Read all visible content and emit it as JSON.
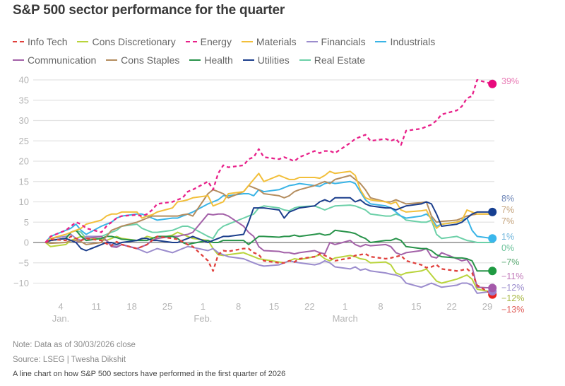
{
  "chart_data": {
    "type": "line",
    "title": "S&P 500 sector performance for the quarter",
    "xlabel": "",
    "ylabel": "",
    "ylim": [
      -10,
      40
    ],
    "xlim_days": [
      0,
      89
    ],
    "yticks": [
      40,
      35,
      30,
      25,
      20,
      15,
      10,
      5,
      0,
      -5,
      -10
    ],
    "ytick_labels": [
      "40",
      "35",
      "30",
      "25",
      "20",
      "15",
      "10",
      "5",
      "0",
      "−5",
      "−10"
    ],
    "xticks": [
      {
        "day": 3,
        "label": "4",
        "month": "Jan."
      },
      {
        "day": 10,
        "label": "11",
        "month": ""
      },
      {
        "day": 17,
        "label": "18",
        "month": ""
      },
      {
        "day": 24,
        "label": "25",
        "month": ""
      },
      {
        "day": 31,
        "label": "1",
        "month": "Feb."
      },
      {
        "day": 38,
        "label": "8",
        "month": ""
      },
      {
        "day": 45,
        "label": "15",
        "month": ""
      },
      {
        "day": 52,
        "label": "22",
        "month": ""
      },
      {
        "day": 59,
        "label": "1",
        "month": "March"
      },
      {
        "day": 66,
        "label": "8",
        "month": ""
      },
      {
        "day": 73,
        "label": "15",
        "month": ""
      },
      {
        "day": 80,
        "label": "22",
        "month": ""
      },
      {
        "day": 87,
        "label": "29",
        "month": ""
      }
    ],
    "grid": true,
    "legend_position": "top-left",
    "x_days": [
      0,
      1,
      4,
      5,
      6,
      7,
      8,
      11,
      12,
      13,
      14,
      15,
      18,
      19,
      20,
      21,
      22,
      25,
      26,
      27,
      28,
      29,
      32,
      33,
      34,
      35,
      36,
      39,
      40,
      41,
      42,
      43,
      46,
      47,
      48,
      49,
      50,
      53,
      54,
      55,
      56,
      57,
      60,
      61,
      62,
      63,
      64,
      67,
      68,
      69,
      70,
      71,
      74,
      75,
      76,
      77,
      78,
      81,
      82,
      83,
      84,
      85,
      88
    ],
    "series": [
      {
        "name": "Info Tech",
        "color": "#e0403c",
        "dashed": true,
        "end_label": "−13%",
        "end_dot_color": "#e8231f",
        "values": [
          0,
          0.8,
          0.5,
          1.5,
          1.0,
          0.5,
          1.0,
          0.5,
          -0.3,
          -0.8,
          0.2,
          -0.5,
          -1.5,
          -1.0,
          -0.5,
          0.5,
          1.5,
          1.0,
          0.8,
          0.2,
          -0.5,
          -1.0,
          -4.5,
          -7.0,
          -3.0,
          -2.0,
          -2.2,
          -1.5,
          -1.5,
          -2.5,
          -3.0,
          -4.5,
          -5.0,
          -5.0,
          -4.5,
          -4.8,
          -4.0,
          -3.5,
          -2.8,
          -3.2,
          -3.8,
          -4.5,
          -3.8,
          -3.2,
          -3.0,
          -2.8,
          -3.5,
          -4.0,
          -3.8,
          -3.5,
          -3.2,
          -4.5,
          -5.5,
          -6.2,
          -6.0,
          -5.5,
          -6.5,
          -7.0,
          -6.8,
          -6.5,
          -7.5,
          -10.5,
          -12.8
        ]
      },
      {
        "name": "Cons Discretionary",
        "color": "#b9d43c",
        "dashed": false,
        "end_label": "−12%",
        "end_dot_color": null,
        "values": [
          0,
          -1.0,
          -0.5,
          0.5,
          1.0,
          1.5,
          1.2,
          0.8,
          0.5,
          1.0,
          1.5,
          1.0,
          0.5,
          0.8,
          1.5,
          1.2,
          1.0,
          1.8,
          2.5,
          2.0,
          1.5,
          1.0,
          0.5,
          -1.5,
          -3.0,
          -3.2,
          -3.0,
          -2.5,
          -3.0,
          -3.5,
          -4.0,
          -4.2,
          -4.8,
          -5.0,
          -4.5,
          -4.0,
          -4.2,
          -3.5,
          -3.0,
          -4.0,
          -4.5,
          -3.8,
          -3.2,
          -3.5,
          -4.0,
          -4.2,
          -5.0,
          -4.8,
          -5.5,
          -7.5,
          -8.0,
          -7.5,
          -7.0,
          -6.5,
          -8.0,
          -9.5,
          -10.0,
          -9.0,
          -8.5,
          -8.0,
          -9.0,
          -11.5,
          -12.2
        ]
      },
      {
        "name": "Energy",
        "color": "#e8218a",
        "dashed": true,
        "end_label": "39%",
        "end_dot_color": "#e8097c",
        "values": [
          0,
          1.5,
          3.0,
          4.0,
          5.0,
          4.5,
          3.5,
          2.5,
          4.0,
          5.0,
          6.0,
          6.5,
          6.8,
          6.5,
          7.0,
          8.0,
          9.5,
          10.0,
          10.5,
          11.0,
          12.5,
          13.0,
          15.0,
          13.0,
          17.0,
          19.0,
          18.5,
          19.0,
          20.5,
          21.0,
          23.0,
          21.0,
          20.5,
          21.0,
          20.5,
          20.0,
          21.0,
          22.5,
          22.0,
          22.5,
          22.5,
          22.0,
          24.5,
          25.5,
          26.0,
          26.5,
          25.0,
          25.5,
          25.0,
          25.5,
          24.0,
          27.5,
          28.0,
          28.5,
          29.0,
          30.0,
          31.5,
          32.5,
          33.5,
          35.5,
          36.0,
          40.0,
          39.0
        ]
      },
      {
        "name": "Materials",
        "color": "#f2bf3a",
        "dashed": false,
        "end_label": "7%",
        "end_dot_color": null,
        "values": [
          0,
          1.0,
          2.0,
          2.5,
          3.0,
          3.5,
          4.5,
          5.5,
          6.5,
          7.0,
          7.0,
          7.5,
          7.5,
          6.0,
          6.5,
          6.8,
          7.5,
          8.5,
          10.0,
          10.2,
          10.5,
          11.0,
          11.5,
          9.0,
          9.5,
          10.0,
          12.0,
          12.5,
          14.0,
          15.5,
          17.0,
          15.0,
          16.5,
          16.0,
          15.5,
          15.5,
          16.0,
          16.0,
          15.8,
          16.5,
          17.5,
          17.0,
          17.5,
          16.5,
          13.0,
          11.0,
          10.5,
          10.0,
          9.5,
          10.0,
          8.0,
          7.5,
          7.8,
          8.0,
          5.5,
          3.5,
          4.5,
          5.0,
          5.5,
          8.0,
          7.5,
          7.0,
          7.0
        ]
      },
      {
        "name": "Financials",
        "color": "#9b8ccd",
        "dashed": false,
        "end_label": "−12%",
        "end_dot_color": "#9a7ecd",
        "values": [
          0,
          1.0,
          1.5,
          2.0,
          1.0,
          0.5,
          1.5,
          1.5,
          0.5,
          -0.5,
          -1.0,
          -0.5,
          -1.5,
          -2.0,
          -2.5,
          -2.0,
          -1.5,
          -2.5,
          -2.0,
          -1.5,
          -1.0,
          -1.2,
          -2.0,
          -1.5,
          -2.5,
          -3.0,
          -3.5,
          -4.0,
          -4.5,
          -5.0,
          -5.5,
          -5.8,
          -5.5,
          -5.0,
          -4.5,
          -4.8,
          -5.0,
          -5.5,
          -5.2,
          -4.5,
          -5.0,
          -6.0,
          -6.5,
          -6.0,
          -6.8,
          -6.5,
          -7.0,
          -7.5,
          -7.8,
          -8.0,
          -8.5,
          -10.0,
          -11.0,
          -10.5,
          -10.0,
          -10.5,
          -11.0,
          -10.5,
          -10.0,
          -10.0,
          -10.5,
          -12.5,
          -12.0
        ]
      },
      {
        "name": "Industrials",
        "color": "#3ab4e6",
        "dashed": false,
        "end_label": "1%",
        "end_dot_color": "#3ab7ec",
        "values": [
          0,
          1.5,
          3.0,
          3.5,
          4.5,
          3.0,
          2.0,
          4.0,
          4.5,
          5.0,
          6.0,
          6.5,
          7.0,
          7.0,
          6.5,
          6.0,
          5.5,
          6.0,
          6.0,
          6.5,
          7.0,
          7.5,
          9.5,
          10.0,
          10.5,
          11.5,
          11.5,
          12.0,
          12.0,
          11.5,
          13.0,
          12.5,
          13.0,
          13.5,
          14.0,
          14.2,
          14.5,
          14.0,
          13.8,
          14.5,
          14.8,
          14.5,
          15.0,
          14.5,
          12.5,
          10.5,
          9.5,
          9.0,
          8.5,
          7.5,
          6.5,
          6.0,
          6.5,
          7.0,
          6.0,
          4.0,
          4.5,
          5.0,
          5.5,
          6.0,
          3.0,
          1.5,
          1.0
        ]
      },
      {
        "name": "Communication",
        "color": "#a361a8",
        "dashed": false,
        "end_label": "−11%",
        "end_dot_color": "#a459aa",
        "values": [
          0,
          0.5,
          1.0,
          0.5,
          0,
          0.5,
          1.0,
          1.5,
          0.5,
          -1.0,
          -1.2,
          -0.5,
          -1.5,
          -1.0,
          -0.5,
          0.5,
          1.0,
          1.5,
          1.5,
          1.8,
          2.0,
          2.5,
          7.0,
          6.8,
          7.0,
          7.0,
          6.5,
          4.0,
          2.5,
          1.5,
          -1.0,
          -2.0,
          -2.2,
          -2.5,
          -2.5,
          -2.8,
          -2.5,
          -2.0,
          -2.5,
          -2.8,
          0,
          -0.5,
          0.5,
          -0.5,
          -1.0,
          -0.5,
          -0.8,
          -0.5,
          -1.0,
          -2.5,
          -3.0,
          -2.5,
          -2.0,
          -1.5,
          -3.5,
          -3.8,
          -2.5,
          -4.0,
          -4.5,
          -4.2,
          -6.0,
          -11.0,
          -11.2
        ]
      },
      {
        "name": "Cons Staples",
        "color": "#b48d5f",
        "dashed": false,
        "end_label": "7%",
        "end_dot_color": null,
        "values": [
          0,
          -0.2,
          0,
          0.5,
          0.5,
          0.2,
          -0.5,
          0,
          1.5,
          3.0,
          3.5,
          4.0,
          5.0,
          5.5,
          6.0,
          6.5,
          6.5,
          6.5,
          6.5,
          6.8,
          7.0,
          6.5,
          12.0,
          13.0,
          12.5,
          12.0,
          11.0,
          12.5,
          14.0,
          13.5,
          13.0,
          12.0,
          11.5,
          11.0,
          11.5,
          12.5,
          13.0,
          14.0,
          14.5,
          15.0,
          14.5,
          15.5,
          16.5,
          15.5,
          14.5,
          13.0,
          11.0,
          10.0,
          10.0,
          10.5,
          10.0,
          9.5,
          9.8,
          10.0,
          6.5,
          5.0,
          5.2,
          5.5,
          6.0,
          6.5,
          6.8,
          7.0,
          7.0
        ]
      },
      {
        "name": "Health",
        "color": "#28934a",
        "dashed": false,
        "end_label": "−7%",
        "end_dot_color": "#1f9a42",
        "values": [
          0,
          0.5,
          1.0,
          2.5,
          3.0,
          1.5,
          0.5,
          1.0,
          1.5,
          1.5,
          1.2,
          0.8,
          0.5,
          0.5,
          0.5,
          1.0,
          1.5,
          1.5,
          1.0,
          0,
          -0.5,
          -0.2,
          0.5,
          0,
          0,
          0.5,
          0.5,
          0.5,
          -0.5,
          0.5,
          1.5,
          1.5,
          1.3,
          1.5,
          1.5,
          1.8,
          1.5,
          2.0,
          2.2,
          1.8,
          2.0,
          3.0,
          2.5,
          2.2,
          1.5,
          1.0,
          0,
          0.5,
          0.5,
          1.0,
          0.5,
          -1.0,
          -1.5,
          -1.5,
          -2.0,
          -3.0,
          -3.5,
          -3.8,
          -3.8,
          -4.0,
          -4.5,
          -7.0,
          -7.0
        ]
      },
      {
        "name": "Utilities",
        "color": "#1b3e8c",
        "dashed": false,
        "end_label": "8%",
        "end_dot_color": "#163f91",
        "values": [
          0,
          0.5,
          1.0,
          0.5,
          0,
          -1.5,
          -2.0,
          -0.5,
          0,
          0,
          -0.5,
          0,
          0.5,
          1.0,
          1.0,
          0.5,
          0.5,
          0,
          0,
          0.5,
          1.0,
          1.5,
          0,
          0.5,
          1.0,
          1.5,
          1.5,
          2.0,
          5.0,
          8.5,
          8.5,
          8.5,
          8.0,
          6.0,
          7.5,
          8.0,
          8.5,
          9.0,
          10.0,
          10.5,
          10.0,
          11.0,
          11.0,
          10.0,
          10.5,
          9.5,
          9.0,
          8.5,
          8.5,
          8.0,
          8.5,
          9.0,
          9.5,
          10.0,
          9.5,
          7.0,
          4.0,
          4.5,
          5.0,
          6.0,
          7.0,
          7.5,
          7.5
        ]
      },
      {
        "name": "Real Estate",
        "color": "#6cd0a8",
        "dashed": false,
        "end_label": "0%",
        "end_dot_color": null,
        "values": [
          0,
          0.5,
          1.0,
          2.5,
          3.0,
          2.5,
          1.0,
          1.5,
          2.0,
          2.5,
          3.0,
          4.0,
          4.5,
          3.5,
          3.0,
          2.5,
          2.5,
          3.0,
          3.5,
          4.0,
          4.0,
          3.5,
          1.5,
          1.0,
          3.0,
          4.0,
          4.5,
          6.0,
          6.5,
          7.0,
          8.5,
          9.0,
          8.5,
          8.0,
          7.8,
          8.5,
          8.8,
          9.0,
          8.5,
          8.0,
          8.5,
          9.0,
          9.2,
          9.0,
          8.5,
          8.0,
          7.0,
          6.5,
          6.5,
          7.0,
          6.5,
          5.5,
          5.0,
          5.0,
          5.5,
          2.0,
          1.0,
          1.5,
          1.0,
          0.5,
          0.3,
          0,
          0
        ]
      }
    ],
    "end_labels_order": [
      {
        "label": "39%",
        "series": "Energy",
        "color": "#e87bb5"
      },
      {
        "label": "8%",
        "series": "Utilities",
        "color": "#6f87b8"
      },
      {
        "label": "7%",
        "series": "Cons Staples",
        "color": "#c4a37c"
      },
      {
        "label": "7%",
        "series": "Materials",
        "color": "#c4a37c"
      },
      {
        "label": "1%",
        "series": "Industrials",
        "color": "#6fb5dc"
      },
      {
        "label": "0%",
        "series": "Real Estate",
        "color": "#6cc29a"
      },
      {
        "label": "−7%",
        "series": "Health",
        "color": "#5aa872"
      },
      {
        "label": "−11%",
        "series": "Communication",
        "color": "#c076b8"
      },
      {
        "label": "−12%",
        "series": "Financials",
        "color": "#9b8ccd"
      },
      {
        "label": "−12%",
        "series": "Cons Discretionary",
        "color": "#a8b845"
      },
      {
        "label": "−13%",
        "series": "Info Tech",
        "color": "#e0605c"
      }
    ]
  },
  "legend": {
    "row1": [
      {
        "name": "Info Tech",
        "color": "#e0403c",
        "dashed": true
      },
      {
        "name": "Cons Discretionary",
        "color": "#b9d43c",
        "dashed": false
      },
      {
        "name": "Energy",
        "color": "#e8218a",
        "dashed": true
      },
      {
        "name": "Materials",
        "color": "#f2bf3a",
        "dashed": false
      },
      {
        "name": "Financials",
        "color": "#9b8ccd",
        "dashed": false
      },
      {
        "name": "Industrials",
        "color": "#3ab4e6",
        "dashed": false
      }
    ],
    "row2": [
      {
        "name": "Communication",
        "color": "#a361a8",
        "dashed": false
      },
      {
        "name": "Cons Staples",
        "color": "#b48d5f",
        "dashed": false
      },
      {
        "name": "Health",
        "color": "#28934a",
        "dashed": false
      },
      {
        "name": "Utilities",
        "color": "#1b3e8c",
        "dashed": false
      },
      {
        "name": "Real Estate",
        "color": "#6cd0a8",
        "dashed": false
      }
    ]
  },
  "footer": {
    "note": "Note: Data as of 30/03/2026 close",
    "source": "Source: LSEG | Twesha Dikshit",
    "caption": "A line chart on how S&P 500 sectors have performed in the first quarter of 2026"
  }
}
